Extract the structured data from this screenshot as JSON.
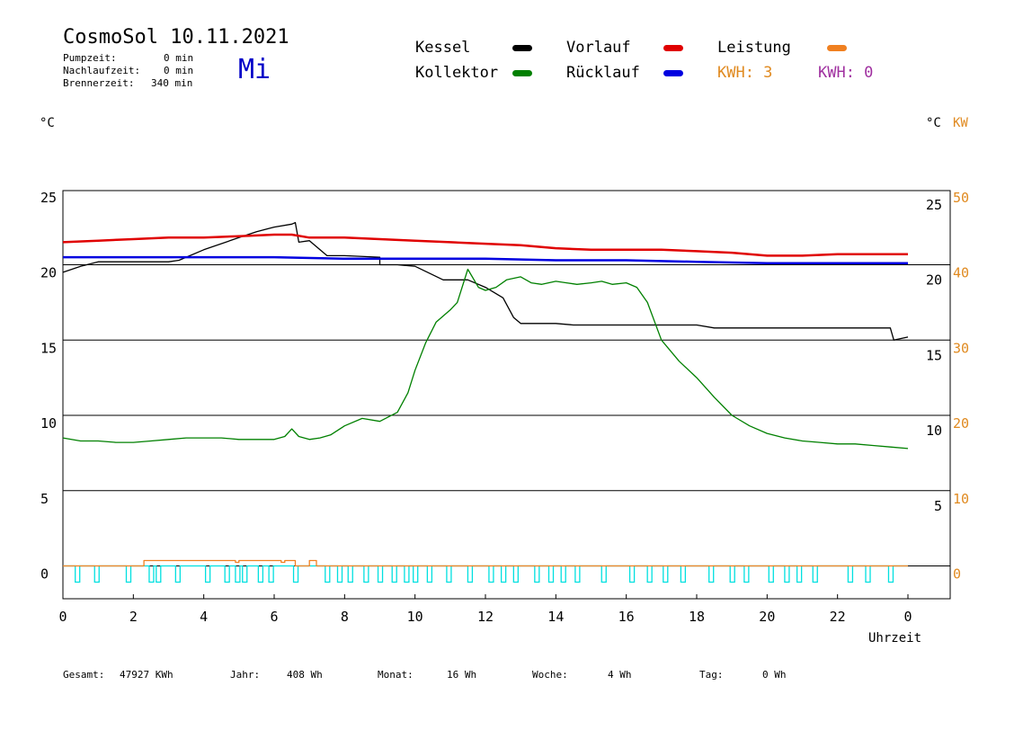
{
  "header": {
    "title": "CosmoSol 10.11.2021",
    "day": "Mi",
    "stats": [
      {
        "label": "Pumpzeit:",
        "value": "0 min"
      },
      {
        "label": "Nachlaufzeit:",
        "value": "0 min"
      },
      {
        "label": "Brennerzeit:",
        "value": "340 min"
      }
    ]
  },
  "legend": {
    "kessel": {
      "label": "Kessel",
      "color": "#000000"
    },
    "vorlauf": {
      "label": "Vorlauf",
      "color": "#e00000"
    },
    "leistung": {
      "label": "Leistung",
      "color": "#f08020"
    },
    "kollektor": {
      "label": "Kollektor",
      "color": "#008000"
    },
    "ruecklauf": {
      "label": "Rücklauf",
      "color": "#0000e0"
    },
    "kwh1": "KWH: 3",
    "kwh2": "KWH: 0",
    "kwh1_color": "#e08a20",
    "kwh2_color": "#a030a0"
  },
  "axes": {
    "left_unit": "°C",
    "right_unit": "°C",
    "right_unit2": "KW",
    "xlabel": "Uhrzeit"
  },
  "footer": {
    "gesamt_label": "Gesamt:",
    "gesamt_value": "47927 KWh",
    "jahr_label": "Jahr:",
    "jahr_value": "408 Wh",
    "monat_label": "Monat:",
    "monat_value": "16 Wh",
    "woche_label": "Woche:",
    "woche_value": "4 Wh",
    "tag_label": "Tag:",
    "tag_value": "0 Wh"
  },
  "chart_data": {
    "type": "line",
    "x_ticks": [
      "0",
      "2",
      "4",
      "6",
      "8",
      "10",
      "12",
      "14",
      "16",
      "18",
      "20",
      "22",
      "0"
    ],
    "xlim": [
      0,
      24
    ],
    "ylim_left": [
      -2,
      26
    ],
    "left_ticks": [
      "0",
      "5",
      "10",
      "15",
      "20",
      "25"
    ],
    "right_ticks_inner": [
      "5",
      "10",
      "15",
      "20",
      "25"
    ],
    "right_ticks_kw": [
      "0",
      "10",
      "20",
      "30",
      "40",
      "50"
    ],
    "grid_y": [
      0,
      5,
      10,
      15,
      20,
      25
    ],
    "series": [
      {
        "name": "Kessel",
        "color": "#000000",
        "x": [
          0,
          0.5,
          1,
          1.5,
          2,
          3,
          3.3,
          4,
          5,
          5.5,
          6,
          6.5,
          6.6,
          6.7,
          7,
          7.2,
          7.5,
          8,
          9,
          9,
          9.5,
          10,
          10.8,
          11,
          11.5,
          12,
          12.5,
          12.8,
          13,
          14,
          14.5,
          15,
          16,
          17,
          18,
          18.5,
          19,
          20,
          21,
          22,
          23,
          23.5,
          23.6,
          24
        ],
        "y": [
          19.5,
          19.9,
          20.2,
          20.2,
          20.2,
          20.2,
          20.3,
          21,
          21.8,
          22.2,
          22.5,
          22.7,
          22.8,
          21.5,
          21.6,
          21.2,
          20.6,
          20.6,
          20.5,
          20.0,
          20.0,
          19.9,
          19.0,
          19.0,
          19.0,
          18.5,
          17.8,
          16.5,
          16.1,
          16.1,
          16.0,
          16.0,
          16.0,
          16.0,
          16.0,
          15.8,
          15.8,
          15.8,
          15.8,
          15.8,
          15.8,
          15.8,
          15.0,
          15.2
        ]
      },
      {
        "name": "Vorlauf",
        "color": "#e00000",
        "x": [
          0,
          1,
          2,
          3,
          4,
          5,
          6,
          6.5,
          7,
          8,
          9,
          10,
          11,
          12,
          13,
          14,
          15,
          16,
          17,
          18,
          19,
          20,
          21,
          22,
          23,
          24
        ],
        "y": [
          21.5,
          21.6,
          21.7,
          21.8,
          21.8,
          21.9,
          22.0,
          22.0,
          21.8,
          21.8,
          21.7,
          21.6,
          21.5,
          21.4,
          21.3,
          21.1,
          21.0,
          21.0,
          21.0,
          20.9,
          20.8,
          20.6,
          20.6,
          20.7,
          20.7,
          20.7
        ]
      },
      {
        "name": "Rücklauf",
        "color": "#0000e0",
        "x": [
          0,
          2,
          4,
          6,
          8,
          10,
          12,
          14,
          16,
          18,
          20,
          22,
          24
        ],
        "y": [
          20.5,
          20.5,
          20.5,
          20.5,
          20.4,
          20.4,
          20.4,
          20.3,
          20.3,
          20.2,
          20.1,
          20.1,
          20.1
        ]
      },
      {
        "name": "Kollektor",
        "color": "#008000",
        "x": [
          0,
          0.5,
          1,
          1.5,
          2,
          2.5,
          3,
          3.5,
          4,
          4.5,
          5,
          5.5,
          6,
          6.3,
          6.5,
          6.7,
          7,
          7.3,
          7.6,
          8,
          8.5,
          9,
          9.5,
          9.8,
          10,
          10.3,
          10.6,
          11,
          11.2,
          11.5,
          11.8,
          12,
          12.3,
          12.6,
          13,
          13.3,
          13.6,
          14,
          14.3,
          14.6,
          15,
          15.3,
          15.6,
          16,
          16.3,
          16.6,
          17,
          17.5,
          18,
          18.5,
          19,
          19.5,
          20,
          20.5,
          21,
          21.5,
          22,
          22.5,
          23,
          23.5,
          24
        ],
        "y": [
          8.5,
          8.3,
          8.3,
          8.2,
          8.2,
          8.3,
          8.4,
          8.5,
          8.5,
          8.5,
          8.4,
          8.4,
          8.4,
          8.6,
          9.1,
          8.6,
          8.4,
          8.5,
          8.7,
          9.3,
          9.8,
          9.6,
          10.2,
          11.5,
          13.0,
          14.8,
          16.2,
          17.0,
          17.5,
          19.7,
          18.5,
          18.3,
          18.5,
          19.0,
          19.2,
          18.8,
          18.7,
          18.9,
          18.8,
          18.7,
          18.8,
          18.9,
          18.7,
          18.8,
          18.5,
          17.5,
          15.0,
          13.6,
          12.5,
          11.2,
          10.0,
          9.3,
          8.8,
          8.5,
          8.3,
          8.2,
          8.1,
          8.1,
          8.0,
          7.9,
          7.8
        ]
      },
      {
        "name": "Leistung",
        "color": "#f08020",
        "x": [
          0,
          2.3,
          2.3,
          2.6,
          2.6,
          4.9,
          4.9,
          5,
          5,
          6.2,
          6.2,
          6.3,
          6.3,
          6.6,
          6.6,
          7.0,
          7.0,
          7.2,
          7.2,
          24
        ],
        "y": [
          0,
          0,
          0.3,
          0.3,
          0.3,
          0.3,
          0.2,
          0.2,
          0.3,
          0.3,
          0.2,
          0.2,
          0.3,
          0.3,
          0,
          0,
          0.3,
          0.3,
          0,
          0
        ]
      }
    ],
    "pump_pulses": [
      0.35,
      0.9,
      1.8,
      2.45,
      2.65,
      3.2,
      4.05,
      4.6,
      4.9,
      5.1,
      5.55,
      5.85,
      6.55,
      7.45,
      7.8,
      8.1,
      8.55,
      8.95,
      9.35,
      9.7,
      9.95,
      10.35,
      10.9,
      11.5,
      12.1,
      12.45,
      12.8,
      13.4,
      13.8,
      14.15,
      14.55,
      15.3,
      16.1,
      16.6,
      17.05,
      17.55,
      18.35,
      18.95,
      19.35,
      20.05,
      20.5,
      20.85,
      21.3,
      22.3,
      22.8,
      23.45
    ]
  }
}
